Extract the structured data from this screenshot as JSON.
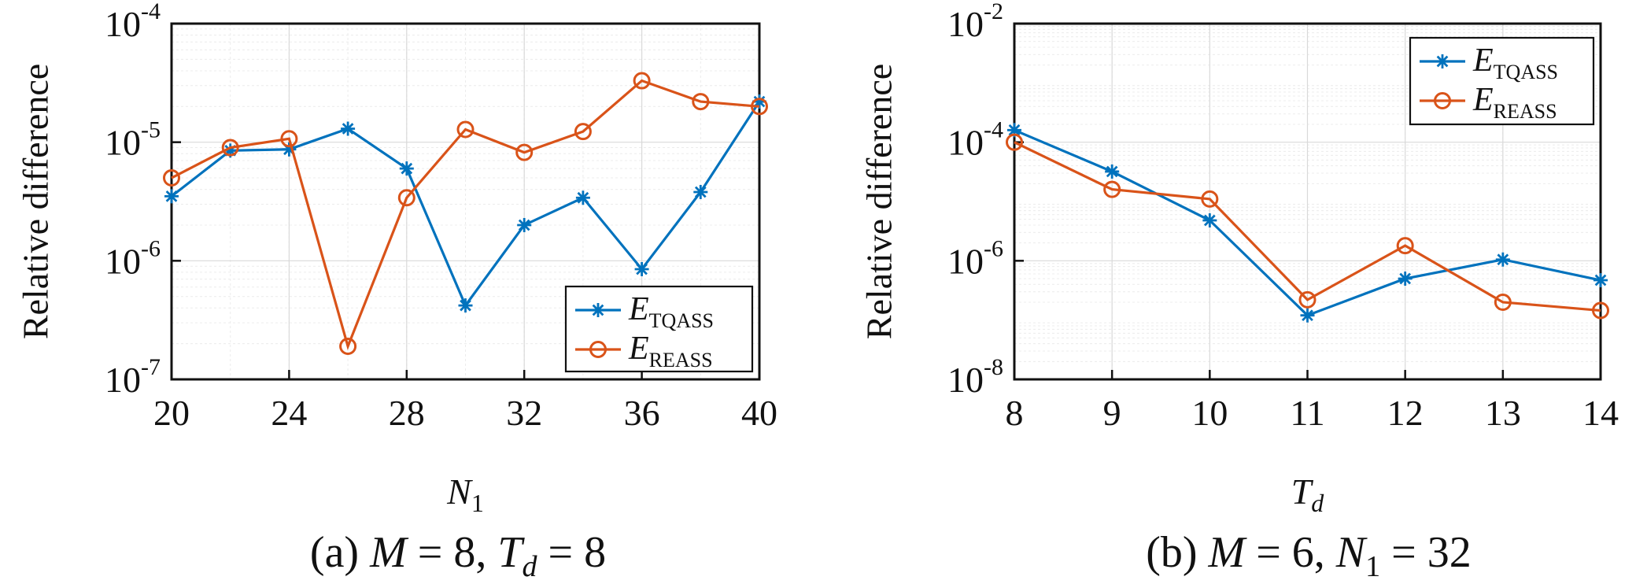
{
  "chart_data": [
    {
      "type": "line",
      "panel": "(a)",
      "caption": {
        "prefix": "(a) ",
        "M": "M",
        "M_val": " = 8, ",
        "T": "T",
        "T_sub": "d",
        "T_val": " = 8"
      },
      "xlabel": {
        "main": "N",
        "sub": "1"
      },
      "ylabel": "Relative difference",
      "yscale": "log",
      "xlim": [
        20,
        40
      ],
      "ylim_exp": [
        -7,
        -4
      ],
      "xticks": [
        "20",
        "24",
        "28",
        "32",
        "36",
        "40"
      ],
      "xtick_values": [
        20,
        24,
        28,
        32,
        36,
        40
      ],
      "yticks_exp": [
        "-7",
        "-6",
        "-5",
        "-4"
      ],
      "ytick_base": "10",
      "grid": true,
      "legend_position": "bottom-right",
      "x": [
        20,
        22,
        24,
        26,
        28,
        30,
        32,
        34,
        36,
        38,
        40
      ],
      "series": [
        {
          "name_main": "E",
          "name_sub": "TQASS",
          "color": "#0072BD",
          "marker": "asterisk",
          "values": [
            3.5e-06,
            8.5e-06,
            8.7e-06,
            1.3e-05,
            6e-06,
            4.2e-07,
            2e-06,
            3.4e-06,
            8.5e-07,
            3.8e-06,
            2.2e-05
          ]
        },
        {
          "name_main": "E",
          "name_sub": "REASS",
          "color": "#D95319",
          "marker": "circle",
          "values": [
            5e-06,
            9e-06,
            1.07e-05,
            1.9e-07,
            3.4e-06,
            1.28e-05,
            8.2e-06,
            1.23e-05,
            3.3e-05,
            2.2e-05,
            2e-05
          ]
        }
      ]
    },
    {
      "type": "line",
      "panel": "(b)",
      "caption": {
        "prefix": "(b) ",
        "M": "M",
        "M_val": " = 6, ",
        "T": "N",
        "T_sub": "1",
        "T_val": " = 32"
      },
      "xlabel": {
        "main": "T",
        "sub": "d"
      },
      "ylabel": "Relative difference",
      "yscale": "log",
      "xlim": [
        8,
        14
      ],
      "ylim_exp": [
        -8,
        -2
      ],
      "xticks": [
        "8",
        "9",
        "10",
        "11",
        "12",
        "13",
        "14"
      ],
      "xtick_values": [
        8,
        9,
        10,
        11,
        12,
        13,
        14
      ],
      "yticks_exp": [
        "-8",
        "-6",
        "-4",
        "-2"
      ],
      "ytick_base": "10",
      "grid": true,
      "legend_position": "top-right",
      "x": [
        8,
        9,
        10,
        11,
        12,
        13,
        14
      ],
      "series": [
        {
          "name_main": "E",
          "name_sub": "TQASS",
          "color": "#0072BD",
          "marker": "asterisk",
          "values": [
            0.00016,
            3.2e-05,
            4.8e-06,
            1.2e-07,
            5e-07,
            1.05e-06,
            4.7e-07
          ]
        },
        {
          "name_main": "E",
          "name_sub": "REASS",
          "color": "#D95319",
          "marker": "circle",
          "values": [
            0.0001,
            1.6e-05,
            1.1e-05,
            2.2e-07,
            1.8e-06,
            2e-07,
            1.45e-07
          ]
        }
      ]
    }
  ]
}
